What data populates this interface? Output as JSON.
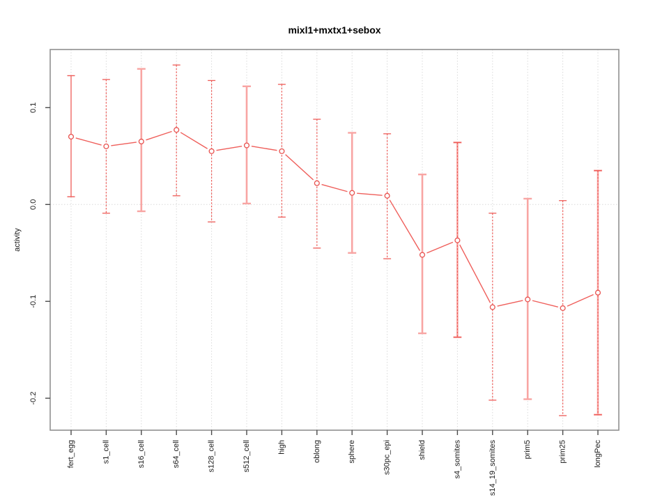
{
  "chart_data": {
    "type": "line",
    "title": "mixl1+mxtx1+sebox",
    "xlabel": "",
    "ylabel": "activity",
    "categories": [
      "fert_egg",
      "s1_cell",
      "s16_cell",
      "s64_cell",
      "s128_cell",
      "s512_cell",
      "high",
      "oblong",
      "sphere",
      "s30pc_epi",
      "shield",
      "s4_somites",
      "s14_19_somites",
      "prim5",
      "prim25",
      "longPec"
    ],
    "series": [
      {
        "name": "activity",
        "values": [
          0.07,
          0.06,
          0.065,
          0.077,
          0.055,
          0.061,
          0.055,
          0.022,
          0.012,
          0.009,
          -0.052,
          -0.037,
          -0.106,
          -0.098,
          -0.107,
          -0.091
        ],
        "lower": [
          0.008,
          -0.009,
          -0.007,
          0.009,
          -0.018,
          0.001,
          -0.013,
          -0.045,
          -0.05,
          -0.056,
          -0.133,
          -0.137,
          -0.202,
          -0.201,
          -0.218,
          -0.217
        ],
        "upper": [
          0.133,
          0.129,
          0.14,
          0.144,
          0.128,
          0.122,
          0.124,
          0.088,
          0.074,
          0.073,
          0.031,
          0.064,
          -0.009,
          0.006,
          0.004,
          0.035
        ],
        "bar_styles": [
          "red",
          "dashed",
          "pale",
          "dashed",
          "dashed",
          "pale",
          "dashed",
          "dashed",
          "pale",
          "dashed",
          "pale",
          "both",
          "dashed",
          "pale",
          "dashed",
          "both"
        ]
      }
    ],
    "ylim": [
      -0.233,
      0.16
    ],
    "yticks": {
      "values": [
        0.1,
        0.0,
        -0.1,
        -0.2
      ],
      "labels": [
        "0.1",
        "0.0",
        "-0.1",
        "-0.2"
      ]
    },
    "grid": {
      "vertical": "dotted at each category",
      "horizontal": "dotted at 0.0"
    },
    "legend": "none",
    "point_marker": "open-circle",
    "colors": {
      "line": "#ef5e5a",
      "point": "#e8514e",
      "bar_pale": "#f8a5a3",
      "bar_red": "#ee5c58",
      "grid": "#d9d9d9",
      "frame": "#909090",
      "tick": "#4a4a4a",
      "text": "#1a1a1a"
    }
  }
}
